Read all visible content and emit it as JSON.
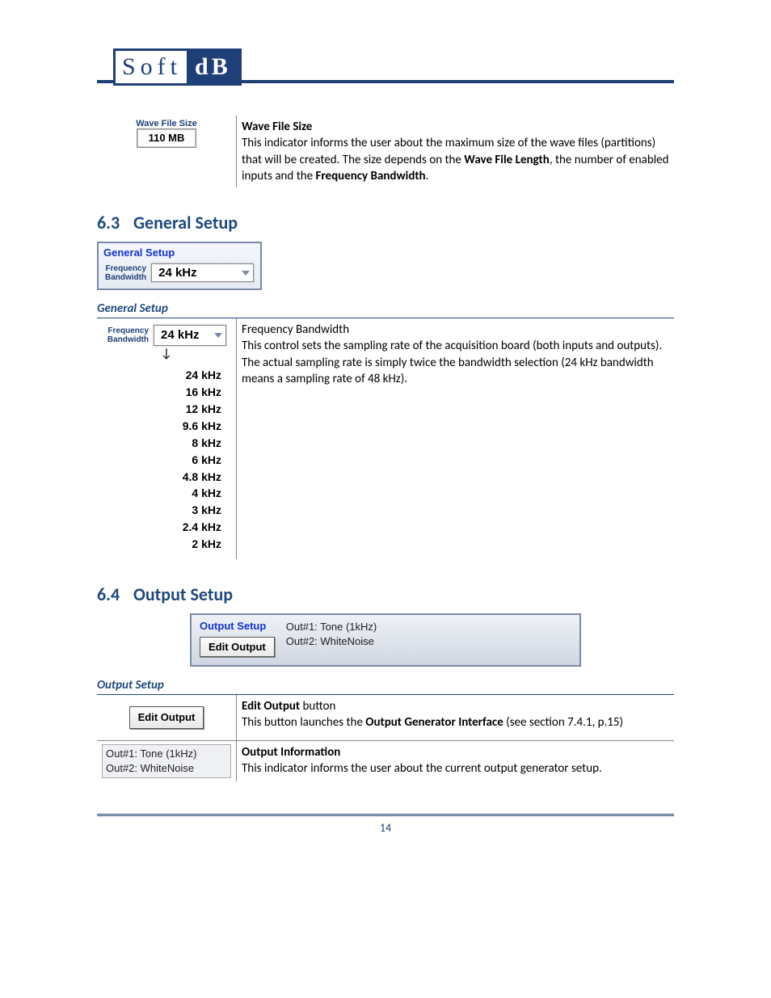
{
  "logo": {
    "left": "Soft",
    "right": "dB"
  },
  "wave_row": {
    "lbl": "Wave File Size",
    "val": "110 MB",
    "title": "Wave File Size",
    "desc_pre": "This indicator informs the user about the maximum size of the wave files (partitions) that will be created. The size depends on the ",
    "bold1": "Wave File Length",
    "mid": ", the number of enabled inputs and the ",
    "bold2": "Frequency Bandwidth",
    "end": "."
  },
  "sec63": {
    "num": "6.3",
    "title": "General Setup"
  },
  "gs_panel": {
    "title": "General Setup",
    "lbl1": "Frequency",
    "lbl2": "Bandwidth",
    "val": "24 kHz"
  },
  "gs_sub": "General Setup",
  "freq_row": {
    "lbl1": "Frequency",
    "lbl2": "Bandwidth",
    "selected": "24 kHz",
    "options": [
      "24 kHz",
      "16 kHz",
      "12 kHz",
      "9.6 kHz",
      "8 kHz",
      "6 kHz",
      "4.8 kHz",
      "4 kHz",
      "3 kHz",
      "2.4 kHz",
      "2 kHz"
    ],
    "title": "Frequency Bandwidth",
    "desc": "This control sets the sampling rate of the acquisition board (both inputs and outputs). The actual sampling rate is simply twice the bandwidth selection (24 kHz bandwidth means a sampling rate of 48 kHz)."
  },
  "sec64": {
    "num": "6.4",
    "title": "Output Setup"
  },
  "out_panel": {
    "title": "Output Setup",
    "btn": "Edit Output",
    "line1": "Out#1: Tone (1kHz)",
    "line2": "Out#2: WhiteNoise"
  },
  "out_sub": "Output Setup",
  "out_row1": {
    "btn": "Edit Output",
    "title_pre": "Edit Output",
    "title_post": " button",
    "desc_pre": "This button launches the ",
    "bold": "Output Generator Interface",
    "desc_post": " (see section 7.4.1, p.15)"
  },
  "out_row2": {
    "line1": "Out#1: Tone (1kHz)",
    "line2": "Out#2: WhiteNoise",
    "title": "Output Information",
    "desc": "This indicator informs the user about the current output generator setup."
  },
  "page_no": "14"
}
